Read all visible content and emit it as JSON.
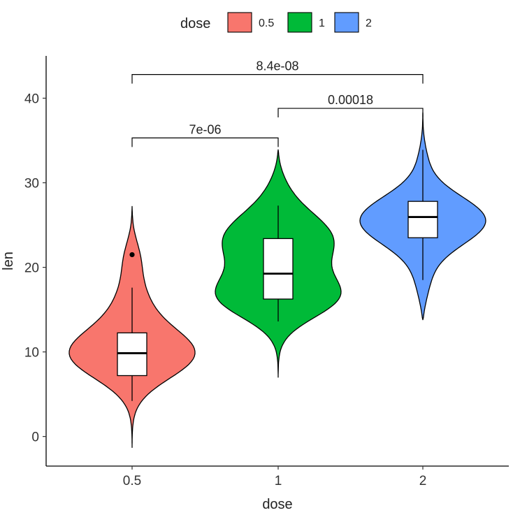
{
  "chart_data": {
    "type": "violin",
    "xlabel": "dose",
    "ylabel": "len",
    "ylim": [
      -3.5,
      45
    ],
    "yticks": [
      0,
      10,
      20,
      30,
      40
    ],
    "categories": [
      "0.5",
      "1",
      "2"
    ],
    "legend": {
      "title": "dose",
      "position": "top",
      "entries": [
        {
          "label": "0.5",
          "color": "#F8766D"
        },
        {
          "label": "1",
          "color": "#00BA38"
        },
        {
          "label": "2",
          "color": "#619CFF"
        }
      ]
    },
    "series": [
      {
        "category": "0.5",
        "color": "#F8766D",
        "violin_range": [
          -1.3,
          27.2
        ],
        "boxplot": {
          "whisker_low": 4.2,
          "q1": 7.2,
          "median": 9.85,
          "q3": 12.25,
          "whisker_high": 17.6
        },
        "outliers": [
          21.5
        ]
      },
      {
        "category": "1",
        "color": "#00BA38",
        "violin_range": [
          7.0,
          33.9
        ],
        "boxplot": {
          "whisker_low": 13.6,
          "q1": 16.25,
          "median": 19.25,
          "q3": 23.4,
          "whisker_high": 27.3
        },
        "outliers": []
      },
      {
        "category": "2",
        "color": "#619CFF",
        "violin_range": [
          13.8,
          38.3
        ],
        "boxplot": {
          "whisker_low": 18.5,
          "q1": 23.5,
          "median": 25.95,
          "q3": 27.8,
          "whisker_high": 33.9
        },
        "outliers": []
      }
    ],
    "comparisons": [
      {
        "group1": "0.5",
        "group2": "1",
        "label": "7e-06",
        "y": 35.3
      },
      {
        "group1": "1",
        "group2": "2",
        "label": "0.00018",
        "y": 38.8
      },
      {
        "group1": "0.5",
        "group2": "2",
        "label": "8.4e-08",
        "y": 42.8
      }
    ],
    "grid": false
  }
}
